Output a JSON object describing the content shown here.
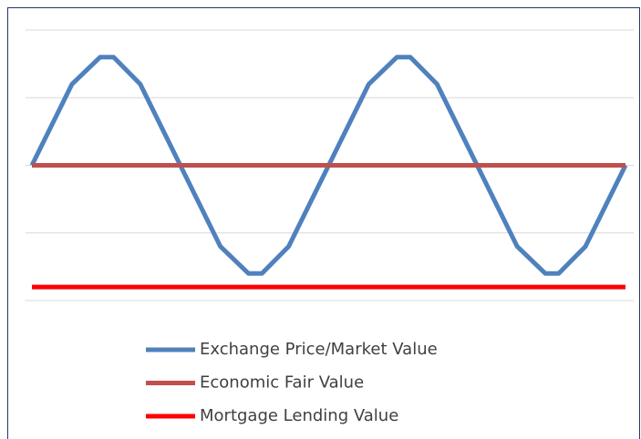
{
  "chart_data": {
    "type": "line",
    "x": [
      0,
      1.35,
      2.3,
      2.75,
      3.65,
      5,
      6.35,
      7.3,
      7.75,
      8.65,
      10,
      11.35,
      12.3,
      12.75,
      13.65,
      15,
      16.35,
      17.3,
      17.75,
      18.65,
      20
    ],
    "xlim": [
      0,
      20
    ],
    "ylim": [
      0,
      4
    ],
    "yticks": [
      0,
      1,
      2,
      3,
      4
    ],
    "grid": true,
    "legend": "bottom",
    "series": [
      {
        "name": "Exchange Price/Market Value",
        "color": "#4f81bd",
        "values": [
          2,
          3.2,
          3.6,
          3.6,
          3.2,
          2,
          0.8,
          0.4,
          0.4,
          0.8,
          2,
          3.2,
          3.6,
          3.6,
          3.2,
          2,
          0.8,
          0.4,
          0.4,
          0.8,
          2
        ]
      },
      {
        "name": "Economic Fair Value",
        "color": "#c0504d",
        "values": [
          2,
          2,
          2,
          2,
          2,
          2,
          2,
          2,
          2,
          2,
          2,
          2,
          2,
          2,
          2,
          2,
          2,
          2,
          2,
          2,
          2
        ]
      },
      {
        "name": "Mortgage Lending Value",
        "color": "#ff0000",
        "values": [
          0.2,
          0.2,
          0.2,
          0.2,
          0.2,
          0.2,
          0.2,
          0.2,
          0.2,
          0.2,
          0.2,
          0.2,
          0.2,
          0.2,
          0.2,
          0.2,
          0.2,
          0.2,
          0.2,
          0.2,
          0.2
        ]
      }
    ]
  }
}
